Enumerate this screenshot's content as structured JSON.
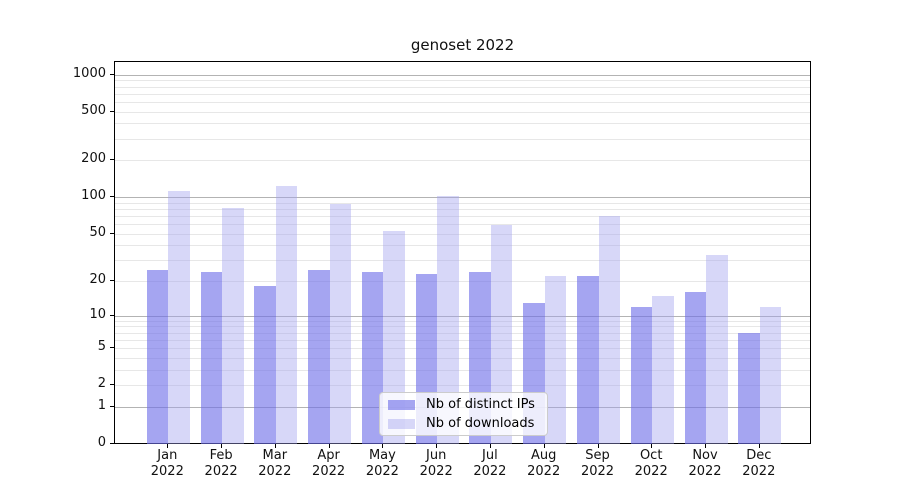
{
  "title": "genoset 2022",
  "chart_data": {
    "type": "bar",
    "title": "genoset 2022",
    "categories": [
      "Jan 2022",
      "Feb 2022",
      "Mar 2022",
      "Apr 2022",
      "May 2022",
      "Jun 2022",
      "Jul 2022",
      "Aug 2022",
      "Sep 2022",
      "Oct 2022",
      "Nov 2022",
      "Dec 2022"
    ],
    "series": [
      {
        "name": "Nb of distinct IPs",
        "color": "rgba(110,110,232,0.62)",
        "values": [
          25,
          24,
          18,
          25,
          24,
          23,
          24,
          13,
          22,
          12,
          16,
          7
        ]
      },
      {
        "name": "Nb of downloads",
        "color": "rgba(160,160,238,0.42)",
        "values": [
          113,
          82,
          124,
          87,
          53,
          102,
          59,
          22,
          70,
          15,
          33,
          12
        ]
      }
    ],
    "xlabel": "",
    "ylabel": "",
    "y_scale": "log1p",
    "y_ticks": [
      0,
      1,
      2,
      5,
      10,
      20,
      50,
      100,
      200,
      500,
      1000
    ],
    "y_minor_grid_values": [
      2,
      3,
      4,
      5,
      6,
      7,
      8,
      9,
      20,
      30,
      40,
      50,
      60,
      70,
      80,
      90,
      200,
      300,
      400,
      500,
      600,
      700,
      800,
      900
    ],
    "y_major_grid_values": [
      1,
      10,
      100,
      1000
    ],
    "ylim": [
      0,
      1500
    ],
    "grid": true,
    "colors": {
      "major_grid": "#b3b3b3",
      "minor_grid": "#e7e7e7",
      "axis": "#000000",
      "text": "#111111",
      "background": "#ffffff"
    },
    "legend": {
      "position": "lower-center",
      "items": [
        "Nb of distinct IPs",
        "Nb of downloads"
      ]
    }
  }
}
